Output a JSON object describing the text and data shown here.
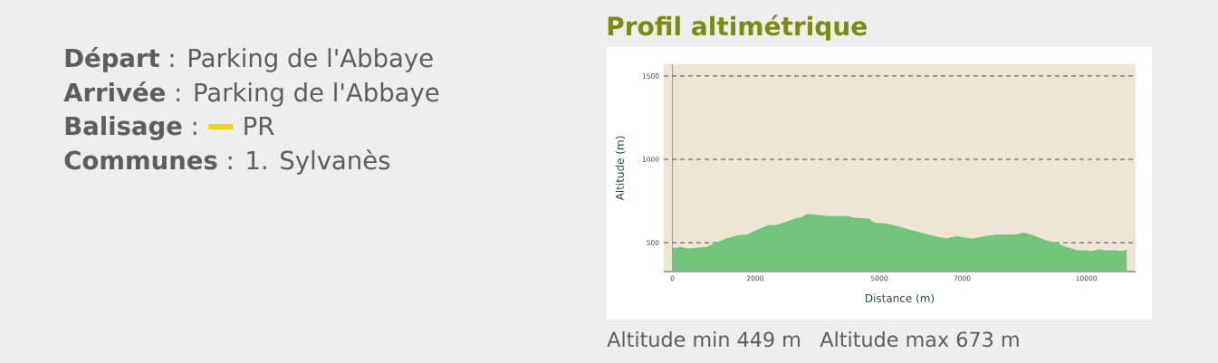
{
  "chart_data": {
    "type": "area",
    "title": "Profil altimétrique",
    "xlabel": "Distance (m)",
    "ylabel": "Altitude (m)",
    "x": [
      0,
      190,
      380,
      570,
      830,
      1000,
      1300,
      1590,
      1810,
      2020,
      2320,
      2490,
      2790,
      3030,
      3090,
      3260,
      3380,
      3770,
      4240,
      4370,
      4750,
      4880,
      5180,
      5350,
      5860,
      6330,
      6620,
      6880,
      7050,
      7260,
      7560,
      7860,
      8290,
      8500,
      8710,
      9010,
      9270,
      9520,
      9780,
      9990,
      10120,
      10290,
      10460,
      10720,
      10820,
      10930,
      10980
    ],
    "values": [
      465,
      475,
      465,
      470,
      475,
      495,
      525,
      545,
      550,
      575,
      605,
      605,
      630,
      650,
      650,
      673,
      670,
      660,
      660,
      650,
      645,
      620,
      615,
      605,
      570,
      540,
      525,
      540,
      530,
      525,
      540,
      550,
      550,
      560,
      545,
      515,
      500,
      475,
      455,
      455,
      449,
      460,
      455,
      455,
      450,
      455,
      460
    ],
    "color": "#72c67c",
    "xlim": [
      -210,
      11190
    ],
    "ylim": [
      327,
      1570
    ],
    "xticks": [
      0,
      2000,
      5000,
      7000,
      10000
    ],
    "yticks": [
      500,
      1000,
      1500
    ],
    "grid": "y",
    "annotations": [
      "**Départ** : Parking de l'Abbaye",
      "**Arrivée** : Parking de l'Abbaye",
      "**Balisage** :",
      "PR",
      "**Communes** : 1. Sylvanès",
      "Altitude min 449 m",
      "Altitude max 673 m"
    ]
  }
}
